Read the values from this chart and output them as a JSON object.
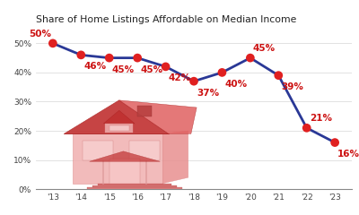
{
  "title": "Share of Home Listings Affordable on Median Income",
  "years": [
    13,
    14,
    15,
    16,
    17,
    18,
    19,
    20,
    21,
    22,
    23
  ],
  "values": [
    50,
    46,
    45,
    45,
    42,
    37,
    40,
    45,
    39,
    21,
    16
  ],
  "labels": [
    "50%",
    "46%",
    "45%",
    "45%",
    "42%",
    "37%",
    "40%",
    "45%",
    "39%",
    "21%",
    "16%"
  ],
  "x_labels": [
    "'13",
    "'14",
    "'15",
    "'16",
    "'17",
    "'18",
    "'19",
    "'20",
    "'21",
    "'22",
    "'23"
  ],
  "line_color": "#2a3896",
  "marker_color": "#e02020",
  "label_color": "#cc1111",
  "title_color": "#222222",
  "background_color": "#ffffff",
  "grid_color": "#dddddd",
  "ylim": [
    0,
    56
  ],
  "yticks": [
    0,
    10,
    20,
    30,
    40,
    50
  ],
  "ytick_labels": [
    "0%",
    "10%",
    "20%",
    "30%",
    "40%",
    "50%"
  ],
  "line_width": 2.0,
  "marker_size": 7,
  "title_fontsize": 7.8,
  "label_fontsize": 7.5,
  "tick_fontsize": 6.5,
  "label_offsets": {
    "13": [
      -0.05,
      3.2,
      "right"
    ],
    "14": [
      0.1,
      -4.0,
      "left"
    ],
    "15": [
      0.1,
      -4.0,
      "left"
    ],
    "16": [
      0.1,
      -4.0,
      "left"
    ],
    "17": [
      0.1,
      -4.0,
      "left"
    ],
    "18": [
      0.1,
      -4.2,
      "left"
    ],
    "19": [
      0.1,
      -4.0,
      "left"
    ],
    "20": [
      0.1,
      3.2,
      "left"
    ],
    "21": [
      0.1,
      -4.0,
      "left"
    ],
    "22": [
      0.1,
      3.2,
      "left"
    ],
    "23": [
      0.1,
      -4.0,
      "left"
    ]
  }
}
